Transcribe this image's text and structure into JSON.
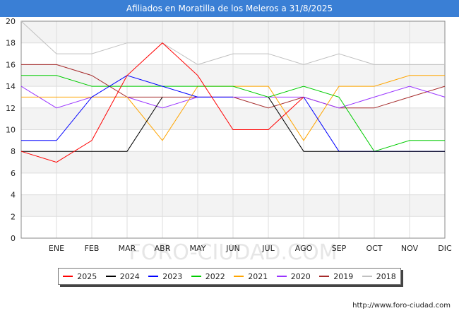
{
  "title": "Afiliados en Moratilla de los Meleros a 31/8/2025",
  "watermark": "FORO-CIUDAD.COM",
  "source_url": "http://www.foro-ciudad.com",
  "chart_data": {
    "type": "line",
    "title": "Afiliados en Moratilla de los Meleros a 31/8/2025",
    "categories": [
      "",
      "ENE",
      "FEB",
      "MAR",
      "ABR",
      "MAY",
      "JUN",
      "JUL",
      "AGO",
      "SEP",
      "OCT",
      "NOV",
      "DIC"
    ],
    "ylim": [
      0,
      20
    ],
    "yticks": [
      0,
      2,
      4,
      6,
      8,
      10,
      12,
      14,
      16,
      18,
      20
    ],
    "grid": true,
    "legend_position": "bottom",
    "series": [
      {
        "name": "2025",
        "color": "#ff0000",
        "values": [
          8,
          7,
          9,
          15,
          18,
          15,
          10,
          10,
          13,
          null,
          null,
          null,
          null
        ]
      },
      {
        "name": "2024",
        "color": "#000000",
        "values": [
          8,
          8,
          8,
          8,
          13,
          null,
          null,
          13,
          8,
          8,
          8,
          8,
          8
        ]
      },
      {
        "name": "2023",
        "color": "#0000ff",
        "values": [
          9,
          9,
          13,
          15,
          14,
          13,
          13,
          null,
          13,
          8,
          8,
          8,
          8
        ]
      },
      {
        "name": "2022",
        "color": "#00cc00",
        "values": [
          15,
          15,
          14,
          14,
          14,
          14,
          14,
          13,
          14,
          13,
          8,
          9,
          9
        ]
      },
      {
        "name": "2021",
        "color": "#ffa500",
        "values": [
          13,
          13,
          13,
          13,
          9,
          14,
          14,
          14,
          9,
          14,
          14,
          15,
          15
        ]
      },
      {
        "name": "2020",
        "color": "#9933ff",
        "values": [
          14,
          12,
          13,
          13,
          12,
          13,
          13,
          13,
          13,
          12,
          13,
          14,
          13
        ]
      },
      {
        "name": "2019",
        "color": "#a52a2a",
        "values": [
          16,
          16,
          15,
          13,
          13,
          13,
          13,
          12,
          13,
          12,
          12,
          13,
          14
        ]
      },
      {
        "name": "2018",
        "color": "#c0c0c0",
        "values": [
          20,
          17,
          17,
          18,
          18,
          16,
          17,
          17,
          16,
          17,
          16,
          16,
          16
        ]
      }
    ]
  }
}
